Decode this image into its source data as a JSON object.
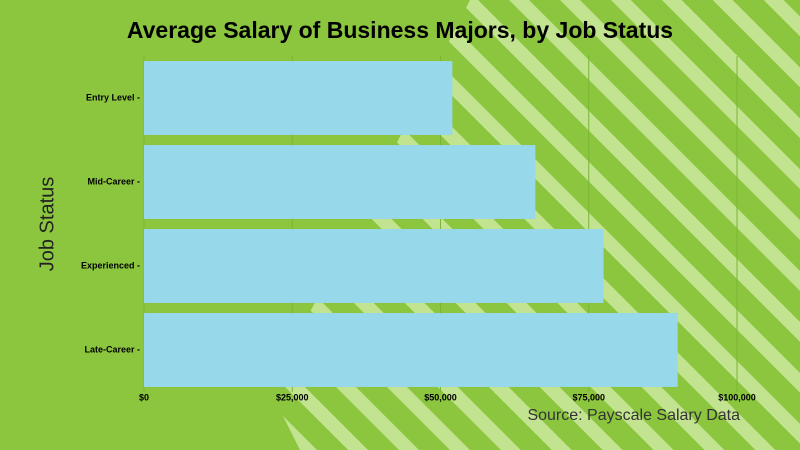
{
  "chart_data": {
    "type": "bar",
    "orientation": "horizontal",
    "title": "Average Salary of Business Majors, by Job Status",
    "y_label": "Job Status",
    "annotation": "Source: Payscale Salary Data",
    "categories": [
      "Entry Level -",
      "Mid-Career -",
      "Experienced -",
      "Late-Career -"
    ],
    "values": [
      52000,
      66000,
      77500,
      90000
    ],
    "color": "#97d8ea",
    "xlim": [
      0,
      100000
    ],
    "xticks": [
      {
        "value": 0,
        "label": "$0"
      },
      {
        "value": 25000,
        "label": "$25,000"
      },
      {
        "value": 50000,
        "label": "$50,000"
      },
      {
        "value": 75000,
        "label": "$75,000"
      },
      {
        "value": 100000,
        "label": "$100,000"
      }
    ],
    "grid": true
  }
}
